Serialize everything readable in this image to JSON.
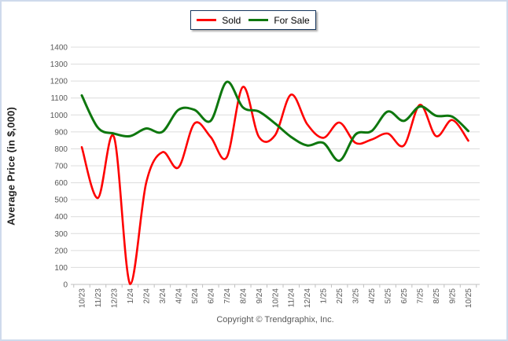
{
  "legend": {
    "items": [
      {
        "label": "Sold",
        "color": "#fe0000"
      },
      {
        "label": "For Sale",
        "color": "#0e770e"
      }
    ]
  },
  "y_axis_title": "Average Price (in $,000)",
  "footer": "Copyright © Trendgraphix, Inc.",
  "colors": {
    "gridline": "#dcdcdc",
    "axis_line": "#c0c0c0",
    "tick_label": "#595959",
    "frame_border": "#cfdaec",
    "legend_border": "#17375e"
  },
  "chart_data": {
    "type": "line",
    "title": "",
    "xlabel": "",
    "ylabel": "Average Price (in $,000)",
    "ylim": [
      0,
      1400
    ],
    "ytick_step": 100,
    "grid": true,
    "legend_position": "top-center",
    "tick_label_rotation": 90,
    "categories": [
      "10/23",
      "11/23",
      "12/23",
      "1/24",
      "2/24",
      "3/24",
      "4/24",
      "5/24",
      "6/24",
      "7/24",
      "8/24",
      "9/24",
      "10/24",
      "11/24",
      "12/24",
      "1/25",
      "2/25",
      "3/25",
      "4/25",
      "5/25",
      "6/25",
      "7/25",
      "8/25",
      "9/25",
      "10/25"
    ],
    "series": [
      {
        "name": "Sold",
        "color": "#fe0000",
        "line_width": 2.6,
        "values": [
          810,
          510,
          870,
          0,
          600,
          780,
          690,
          950,
          870,
          750,
          1165,
          870,
          880,
          1120,
          945,
          865,
          955,
          835,
          855,
          890,
          820,
          1060,
          875,
          970,
          848
        ]
      },
      {
        "name": "For Sale",
        "color": "#0e770e",
        "line_width": 3,
        "values": [
          1115,
          925,
          890,
          875,
          920,
          900,
          1030,
          1030,
          965,
          1195,
          1045,
          1020,
          950,
          870,
          820,
          835,
          730,
          885,
          905,
          1020,
          965,
          1050,
          995,
          990,
          905
        ]
      }
    ]
  }
}
